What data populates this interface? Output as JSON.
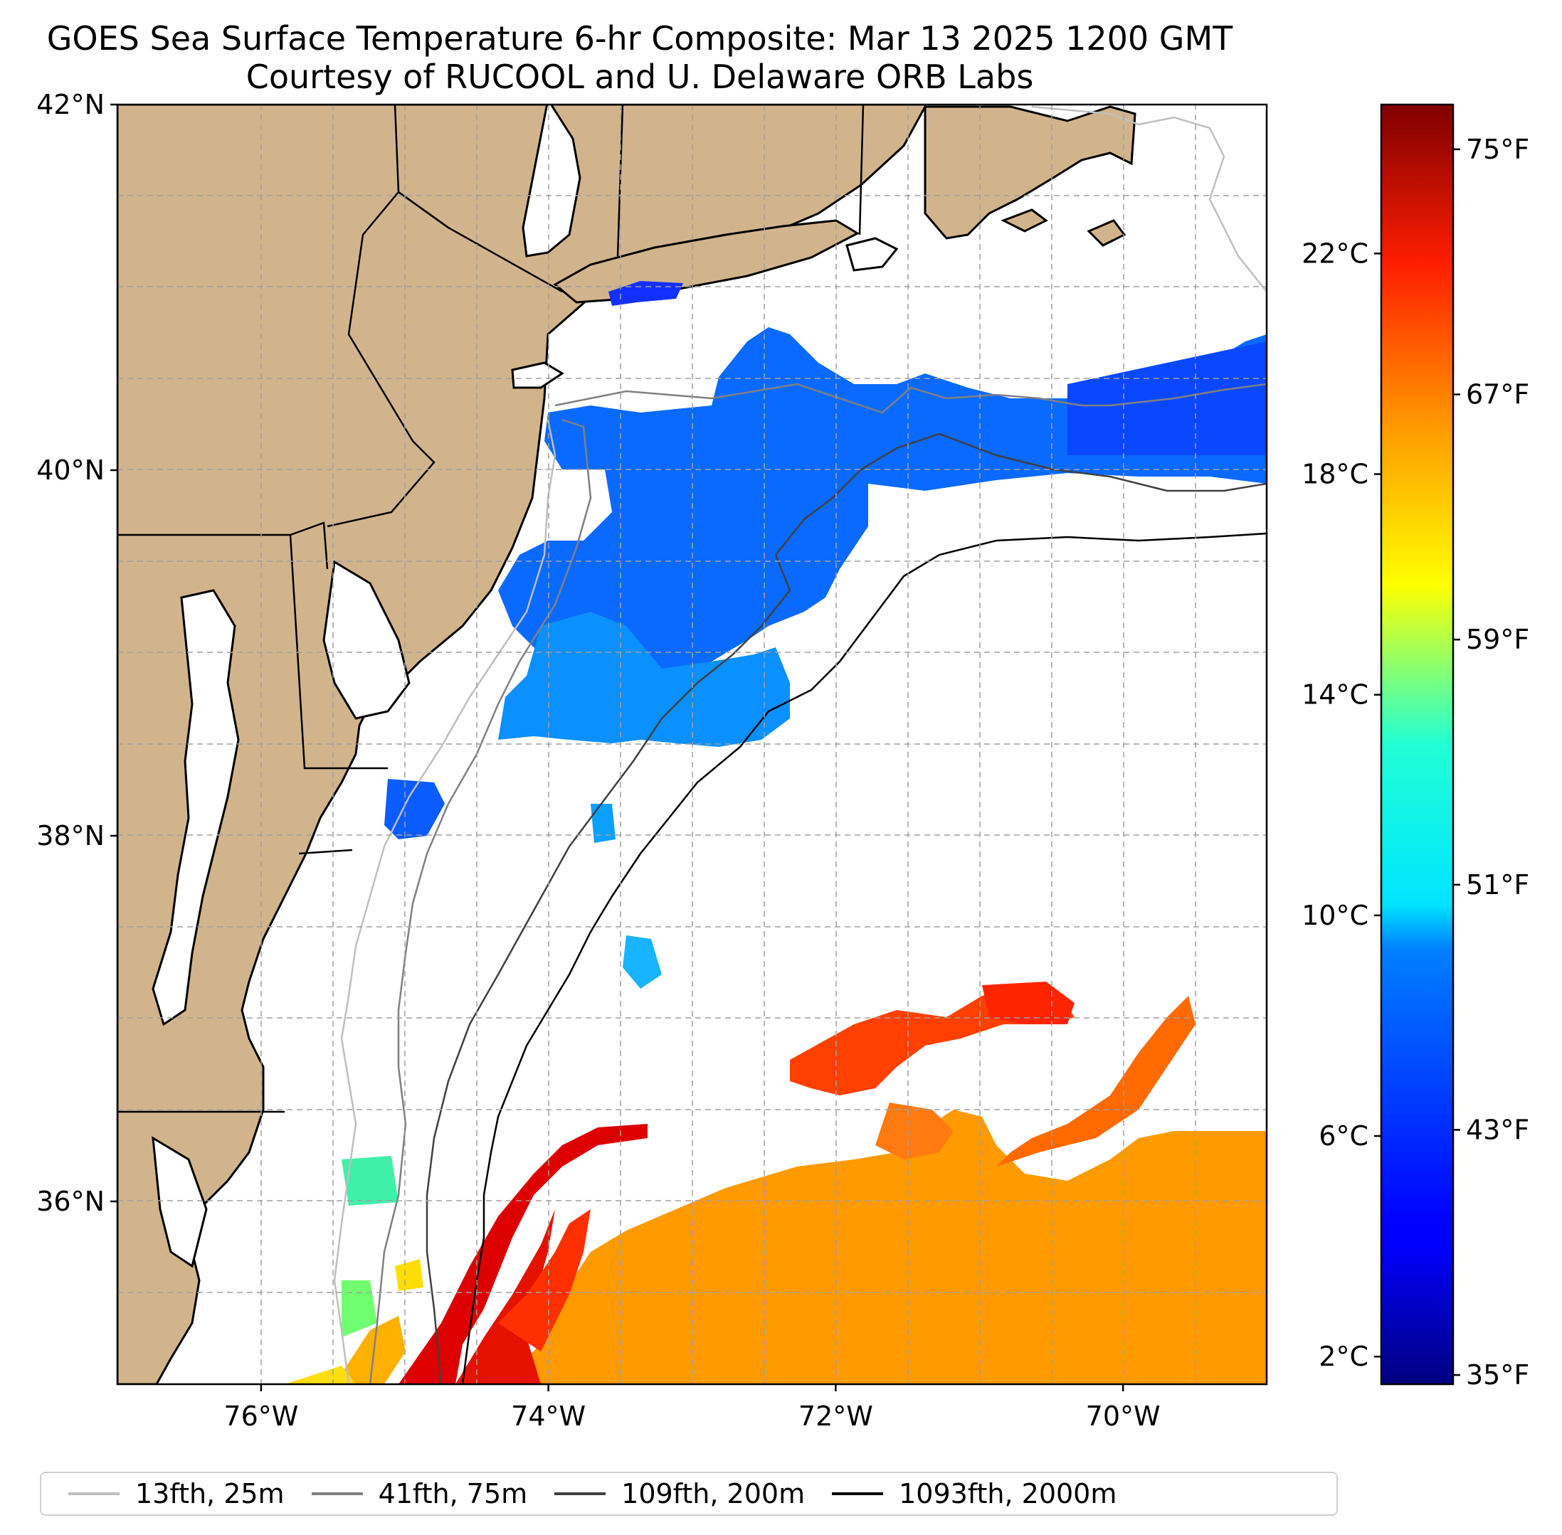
{
  "title": "GOES Sea Surface Temperature 6-hr Composite: Mar 13 2025 1200 GMT",
  "subtitle": "Courtesy of RUCOOL and U. Delaware ORB Labs",
  "map": {
    "extent": {
      "lon_min": -77,
      "lon_max": -69,
      "lat_min": 35,
      "lat_max": 42
    },
    "lat_ticks": [
      {
        "value": 42,
        "label": "42°N"
      },
      {
        "value": 40,
        "label": "40°N"
      },
      {
        "value": 38,
        "label": "38°N"
      },
      {
        "value": 36,
        "label": "36°N"
      }
    ],
    "lon_ticks": [
      {
        "value": -76,
        "label": "76°W"
      },
      {
        "value": -74,
        "label": "74°W"
      },
      {
        "value": -72,
        "label": "72°W"
      },
      {
        "value": -70,
        "label": "70°W"
      }
    ],
    "gridlines": true,
    "land_color": "#d2b48c",
    "colormap": "jet"
  },
  "colorbar": {
    "celsius_range": [
      1.5,
      24.7
    ],
    "celsius_ticks": [
      {
        "value": 2,
        "label": "2°C"
      },
      {
        "value": 6,
        "label": "6°C"
      },
      {
        "value": 10,
        "label": "10°C"
      },
      {
        "value": 14,
        "label": "14°C"
      },
      {
        "value": 18,
        "label": "18°C"
      },
      {
        "value": 22,
        "label": "22°C"
      }
    ],
    "fahrenheit_ticks": [
      {
        "value": 35,
        "label": "35°F"
      },
      {
        "value": 43,
        "label": "43°F"
      },
      {
        "value": 51,
        "label": "51°F"
      },
      {
        "value": 59,
        "label": "59°F"
      },
      {
        "value": 67,
        "label": "67°F"
      },
      {
        "value": 75,
        "label": "75°F"
      }
    ]
  },
  "legend": {
    "items": [
      {
        "label": "13fth, 25m",
        "color": "#bfbfbf"
      },
      {
        "label": "41fth, 75m",
        "color": "#808080"
      },
      {
        "label": "109fth, 200m",
        "color": "#404040"
      },
      {
        "label": "1093fth, 2000m",
        "color": "#000000"
      }
    ]
  }
}
